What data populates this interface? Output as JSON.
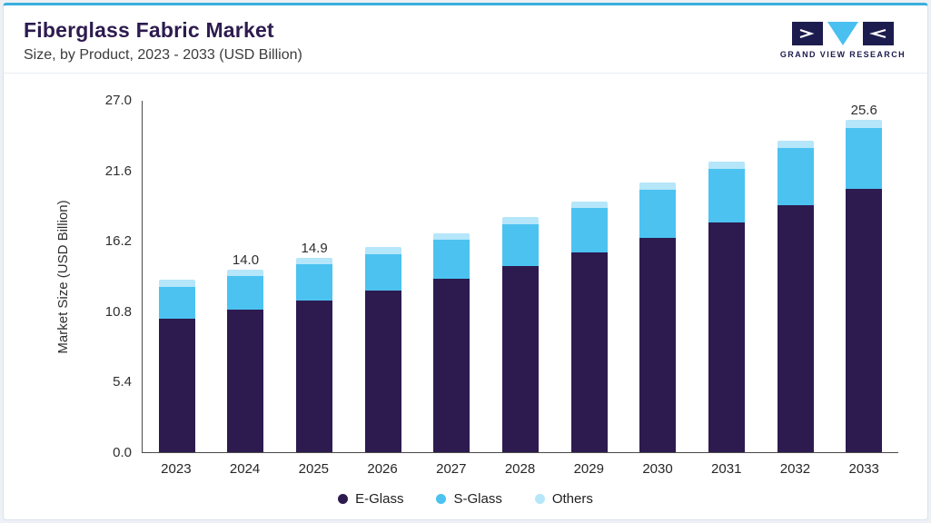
{
  "header": {
    "title": "Fiberglass Fabric Market",
    "subtitle": "Size, by Product, 2023 - 2033 (USD Billion)",
    "logo_text": "GRAND VIEW RESEARCH"
  },
  "colors": {
    "accent_line": "#3aaede",
    "title": "#2d1b4f",
    "logo_navy": "#1c1c4e",
    "logo_cyan": "#49c0ef",
    "e_glass": "#2d1b4f",
    "s_glass": "#4cc2f1",
    "others": "#b5e6fa"
  },
  "chart_data": {
    "type": "bar",
    "stacked": true,
    "title": "Fiberglass Fabric Market Size, by Product, 2023 - 2033 (USD Billion)",
    "xlabel": "",
    "ylabel": "Market Size (USD Billion)",
    "ylim": [
      0,
      27.0
    ],
    "yticks": [
      "0.0",
      "5.4",
      "10.8",
      "16.2",
      "21.6",
      "27.0"
    ],
    "grid": false,
    "legend_position": "bottom",
    "categories": [
      "2023",
      "2024",
      "2025",
      "2026",
      "2027",
      "2028",
      "2029",
      "2030",
      "2031",
      "2032",
      "2033"
    ],
    "bar_labels": [
      "",
      "14.0",
      "14.9",
      "",
      "",
      "",
      "",
      "",
      "",
      "",
      "25.6"
    ],
    "totals": [
      13.2,
      14.0,
      14.9,
      15.7,
      16.8,
      18.0,
      19.2,
      20.7,
      22.3,
      23.9,
      25.6
    ],
    "series": [
      {
        "name": "E-Glass",
        "color": "#2d1b4f",
        "values": [
          10.2,
          10.9,
          11.6,
          12.4,
          13.3,
          14.3,
          15.3,
          16.4,
          17.6,
          18.9,
          20.3
        ]
      },
      {
        "name": "S-Glass",
        "color": "#4cc2f1",
        "values": [
          2.5,
          2.6,
          2.8,
          2.8,
          3.0,
          3.2,
          3.4,
          3.7,
          4.1,
          4.4,
          4.7
        ]
      },
      {
        "name": "Others",
        "color": "#b5e6fa",
        "values": [
          0.5,
          0.5,
          0.5,
          0.5,
          0.5,
          0.5,
          0.5,
          0.6,
          0.6,
          0.6,
          0.6
        ]
      }
    ]
  }
}
